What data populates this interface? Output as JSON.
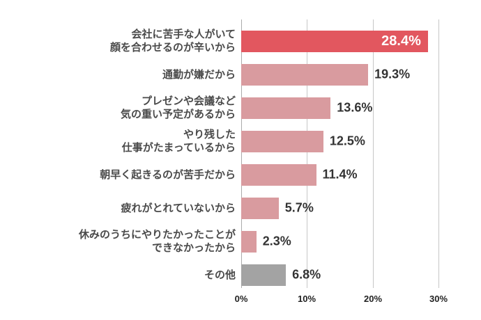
{
  "chart_data": {
    "type": "bar",
    "orientation": "horizontal",
    "title": "",
    "categories": [
      "会社に苦手な人がいて\n顔を合わせるのが辛いから",
      "通勤が嫌だから",
      "プレゼンや会議など\n気の重い予定があるから",
      "やり残した\n仕事がたまっているから",
      "朝早く起きるのが苦手だから",
      "疲れがとれていないから",
      "休みのうちにやりたかったことが\nできなかったから",
      "その他"
    ],
    "values": [
      28.4,
      19.3,
      13.6,
      12.5,
      11.4,
      5.7,
      2.3,
      6.8
    ],
    "value_labels": [
      "28.4%",
      "19.3%",
      "13.6%",
      "12.5%",
      "11.4%",
      "5.7%",
      "2.3%",
      "6.8%"
    ],
    "bars": [
      {
        "label": "会社に苦手な人がいて\n顔を合わせるのが辛いから",
        "value": 28.4,
        "value_label": "28.4%",
        "color": "#E2575F",
        "value_inside": true
      },
      {
        "label": "通勤が嫌だから",
        "value": 19.3,
        "value_label": "19.3%",
        "color": "#D99B9F",
        "value_inside": false
      },
      {
        "label": "プレゼンや会議など\n気の重い予定があるから",
        "value": 13.6,
        "value_label": "13.6%",
        "color": "#D99B9F",
        "value_inside": false
      },
      {
        "label": "やり残した\n仕事がたまっているから",
        "value": 12.5,
        "value_label": "12.5%",
        "color": "#D99B9F",
        "value_inside": false
      },
      {
        "label": "朝早く起きるのが苦手だから",
        "value": 11.4,
        "value_label": "11.4%",
        "color": "#D99B9F",
        "value_inside": false
      },
      {
        "label": "疲れがとれていないから",
        "value": 5.7,
        "value_label": "5.7%",
        "color": "#D99B9F",
        "value_inside": false
      },
      {
        "label": "休みのうちにやりたかったことが\nできなかったから",
        "value": 2.3,
        "value_label": "2.3%",
        "color": "#D99B9F",
        "value_inside": false
      },
      {
        "label": "その他",
        "value": 6.8,
        "value_label": "6.8%",
        "color": "#A3A3A3",
        "value_inside": false
      }
    ],
    "x_ticks": [
      "0%",
      "10%",
      "20%",
      "30%"
    ],
    "xlim": [
      0,
      30
    ],
    "grid": true,
    "legend": "none",
    "colors": {
      "highlight_bar": "#E2575F",
      "default_bar": "#D99B9F",
      "other_bar": "#A3A3A3",
      "gridline": "#C6C6C6",
      "zero_line": "#ABABAB",
      "category_text": "#4A4A4A",
      "value_text": "#333333",
      "value_text_inside": "#FFFFFF",
      "tick_text": "#222222",
      "background": "#FFFFFF"
    }
  }
}
